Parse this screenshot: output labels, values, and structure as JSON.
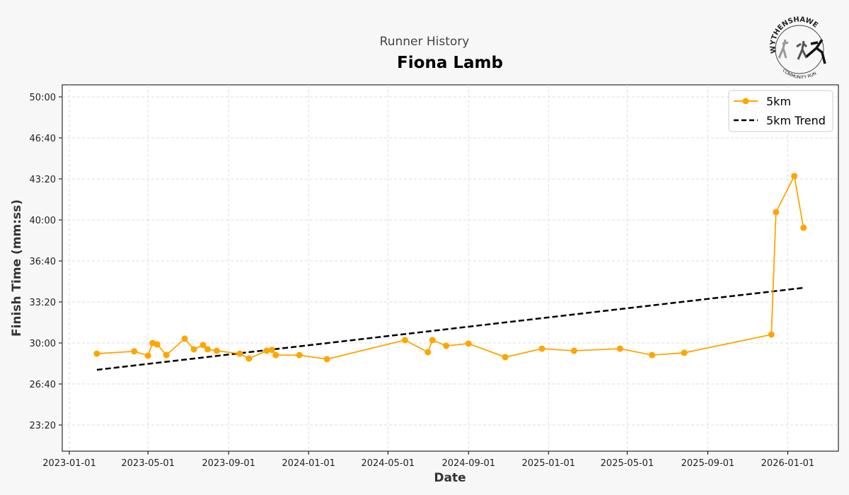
{
  "colors": {
    "series": "#ffa500",
    "trend": "#000000",
    "grid": "#dddddd",
    "background": "#f7f7f7"
  },
  "logo": {
    "text_top": "WYTHENSHAWE",
    "text_bottom": "COMMUNITY RUN"
  },
  "chart_data": {
    "type": "line",
    "suptitle": "Runner History",
    "title": "Fiona Lamb",
    "xlabel": "Date",
    "ylabel": "Finish Time (mm:ss)",
    "xlim": [
      "2022-12-19",
      "2026-03-10"
    ],
    "ylim_seconds": [
      1230,
      3060
    ],
    "x_ticks": [
      "2023-01-01",
      "2023-05-01",
      "2023-09-01",
      "2024-01-01",
      "2024-05-01",
      "2024-09-01",
      "2025-01-01",
      "2025-05-01",
      "2025-09-01",
      "2026-01-01"
    ],
    "y_ticks": [
      "23:20",
      "26:40",
      "30:00",
      "33:20",
      "36:40",
      "40:00",
      "43:20",
      "46:40",
      "50:00"
    ],
    "grid": true,
    "legend_position": "top-right",
    "series": [
      {
        "name": "5km",
        "style": "line-marker",
        "points": [
          [
            "2023-02-12",
            "29:08"
          ],
          [
            "2023-04-10",
            "29:19"
          ],
          [
            "2023-05-01",
            "28:58"
          ],
          [
            "2023-05-08",
            "30:00"
          ],
          [
            "2023-05-15",
            "29:53"
          ],
          [
            "2023-05-29",
            "29:01"
          ],
          [
            "2023-06-26",
            "30:21"
          ],
          [
            "2023-07-10",
            "29:29"
          ],
          [
            "2023-07-24",
            "29:50"
          ],
          [
            "2023-07-31",
            "29:29"
          ],
          [
            "2023-08-14",
            "29:22"
          ],
          [
            "2023-09-18",
            "29:08"
          ],
          [
            "2023-10-02",
            "28:44"
          ],
          [
            "2023-10-29",
            "29:22"
          ],
          [
            "2023-11-06",
            "29:26"
          ],
          [
            "2023-11-12",
            "29:01"
          ],
          [
            "2023-12-18",
            "29:01"
          ],
          [
            "2024-01-29",
            "28:41"
          ],
          [
            "2024-05-27",
            "30:14"
          ],
          [
            "2024-07-01",
            "29:15"
          ],
          [
            "2024-07-08",
            "30:14"
          ],
          [
            "2024-07-29",
            "29:46"
          ],
          [
            "2024-09-01",
            "29:57"
          ],
          [
            "2024-10-27",
            "28:51"
          ],
          [
            "2024-12-22",
            "29:32"
          ],
          [
            "2025-02-09",
            "29:22"
          ],
          [
            "2025-04-20",
            "29:32"
          ],
          [
            "2025-06-08",
            "29:01"
          ],
          [
            "2025-07-27",
            "29:12"
          ],
          [
            "2025-12-07",
            "30:41"
          ],
          [
            "2025-12-14",
            "40:38"
          ],
          [
            "2026-01-11",
            "43:34"
          ],
          [
            "2026-01-25",
            "39:22"
          ]
        ]
      },
      {
        "name": "5km Trend",
        "style": "dashed",
        "points": [
          [
            "2023-02-12",
            "27:49"
          ],
          [
            "2026-01-25",
            "34:29"
          ]
        ]
      }
    ]
  }
}
